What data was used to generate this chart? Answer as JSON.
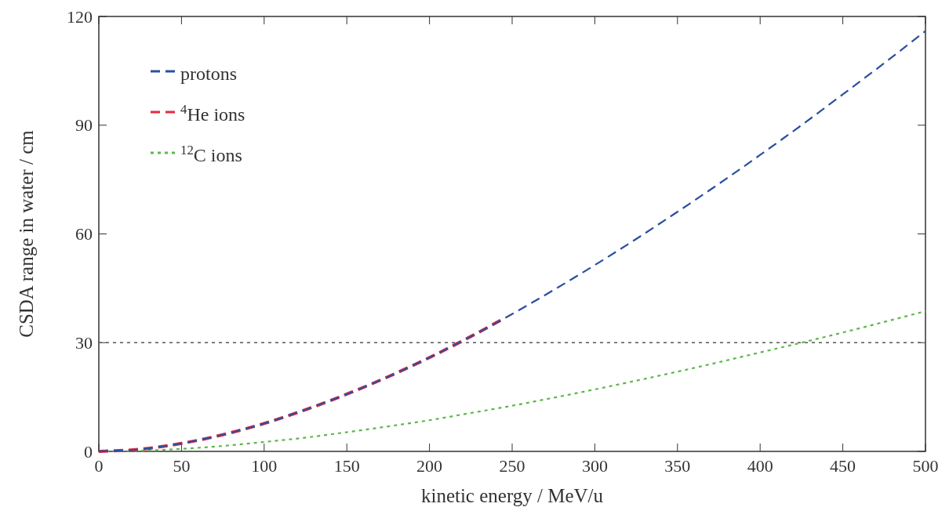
{
  "chart_data": {
    "type": "line",
    "xlabel": "kinetic energy / MeV/u",
    "ylabel": "CSDA range in water / cm",
    "xlim": [
      0,
      500
    ],
    "xticks": [
      0,
      50,
      100,
      150,
      200,
      250,
      300,
      350,
      400,
      450,
      500
    ],
    "ylim": [
      0,
      120
    ],
    "yticks": [
      0,
      30,
      60,
      90,
      120
    ],
    "grid": false,
    "legend": "top left",
    "marker": "none",
    "series": [
      {
        "name": "protons",
        "color": "#2b4fa0",
        "line_style": "dashed",
        "x": [
          0,
          25,
          50,
          75,
          100,
          125,
          150,
          175,
          200,
          225,
          250,
          275,
          300,
          325,
          350,
          375,
          400,
          425,
          450,
          475,
          500
        ],
        "values": [
          0,
          0.6,
          2.2,
          4.6,
          7.7,
          11.5,
          15.8,
          20.6,
          25.9,
          31.7,
          37.9,
          44.5,
          51.4,
          58.6,
          66.1,
          73.8,
          81.8,
          90,
          98.5,
          107.1,
          116
        ]
      },
      {
        "name": "$^{4}$He ions",
        "color": "#e8283a",
        "line_style": "dashed",
        "x": [
          0,
          25,
          50,
          75,
          100,
          125,
          150,
          175,
          200,
          225,
          245
        ],
        "values": [
          0,
          0.6,
          2.2,
          4.6,
          7.7,
          11.5,
          15.8,
          20.6,
          25.9,
          31.7,
          36.7
        ]
      },
      {
        "name": "$^{12}$C ions",
        "color": "#5cb84a",
        "line_style": "dotted",
        "x": [
          0,
          25,
          50,
          75,
          100,
          125,
          150,
          175,
          200,
          225,
          250,
          275,
          300,
          325,
          350,
          375,
          400,
          425,
          450,
          475,
          500
        ],
        "values": [
          0,
          0.2,
          0.7,
          1.5,
          2.6,
          3.8,
          5.3,
          6.9,
          8.6,
          10.6,
          12.6,
          14.8,
          17.1,
          19.5,
          22,
          24.6,
          27.3,
          30,
          32.8,
          35.7,
          38.7
        ]
      }
    ],
    "ref_lines": [
      {
        "axis": "y",
        "value": 30,
        "color": "#555555",
        "line_style": "dotted"
      }
    ]
  }
}
